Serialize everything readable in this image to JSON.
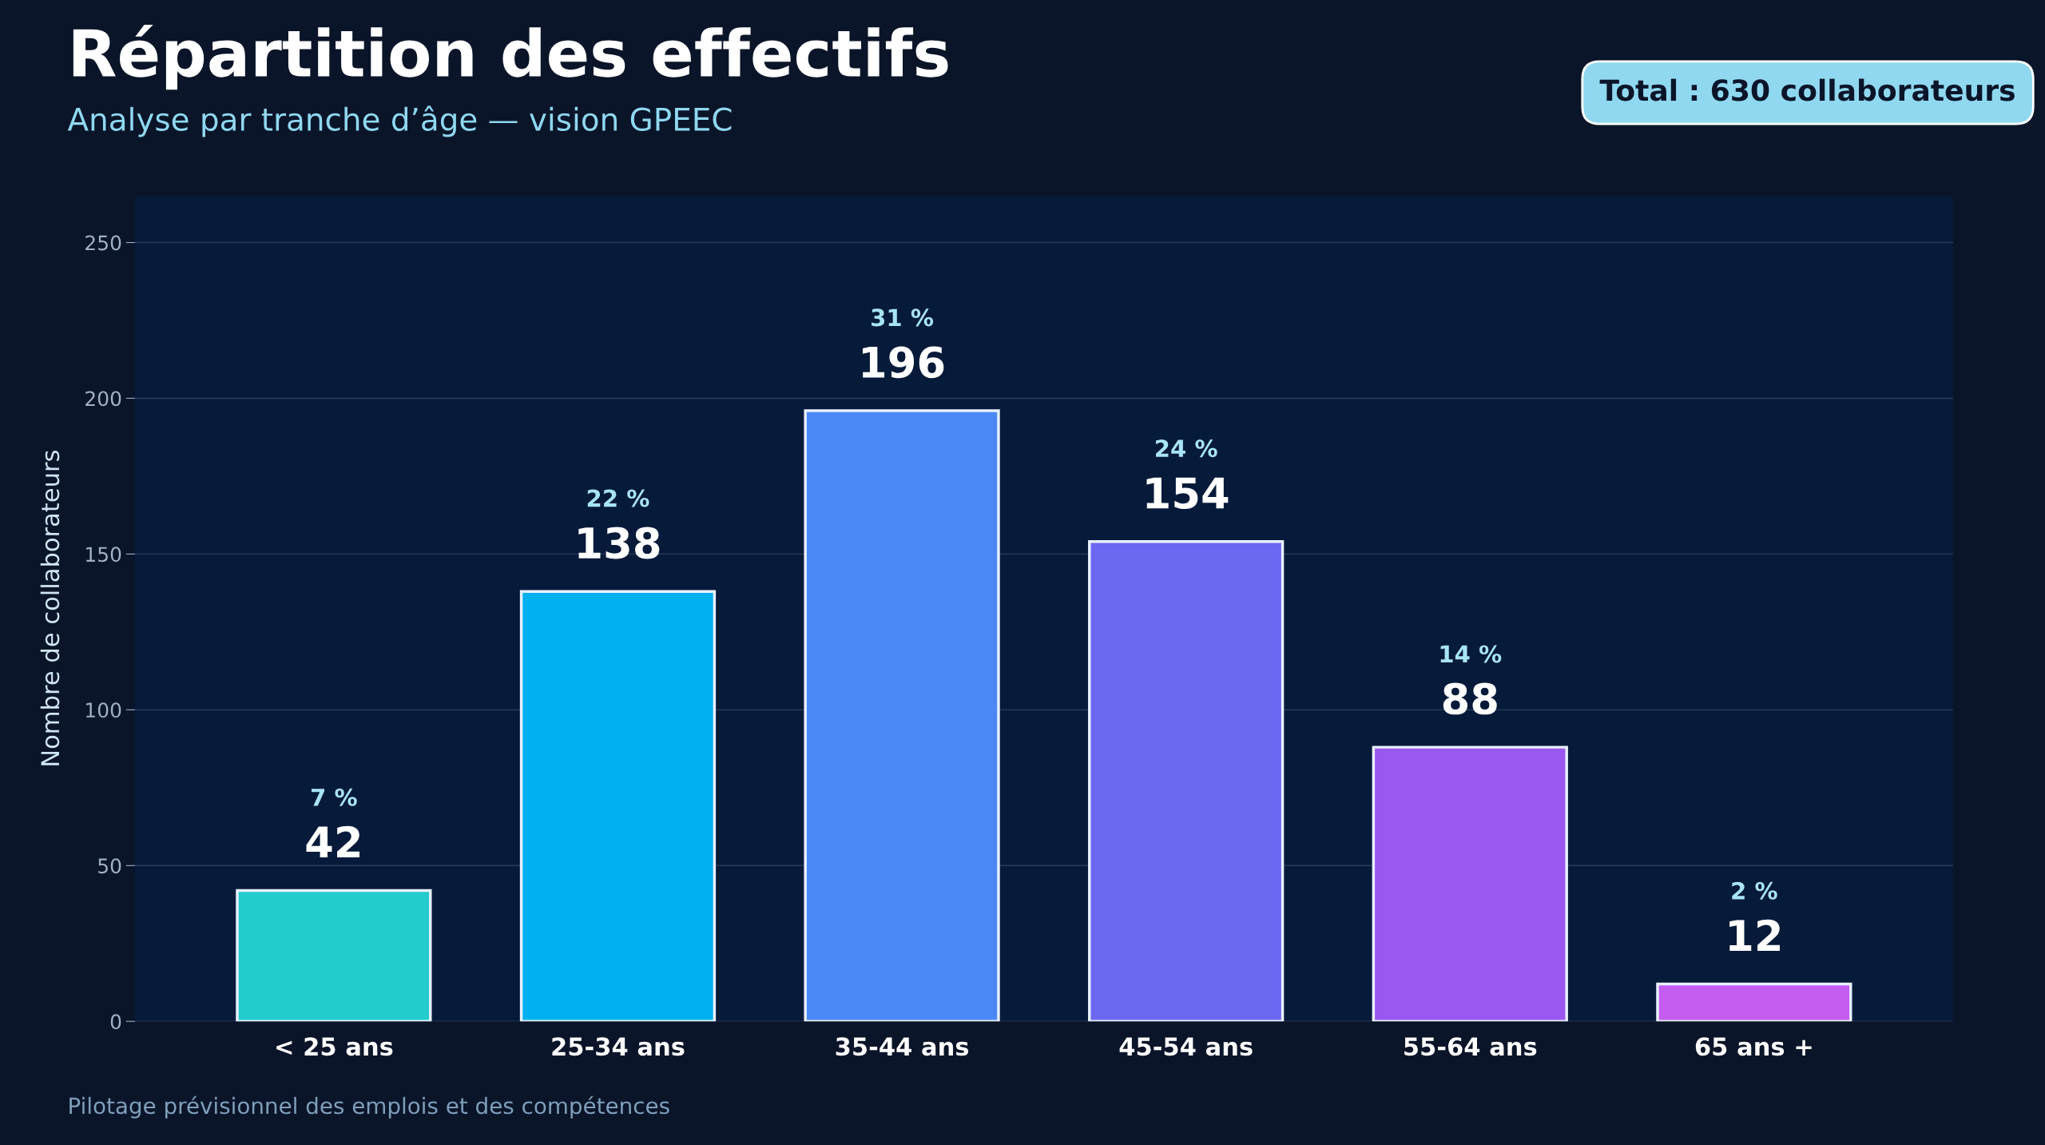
{
  "chart_data": {
    "type": "bar",
    "title": "Répartition des effectifs",
    "subtitle": "Analyse par tranche d’âge — vision GPEEC",
    "ylabel": "Nombre de collaborateurs",
    "categories": [
      "< 25 ans",
      "25-34 ans",
      "35-44 ans",
      "45-54 ans",
      "55-64 ans",
      "65 ans +"
    ],
    "values": [
      42,
      138,
      196,
      154,
      88,
      12
    ],
    "colors": [
      "#22cccc",
      "#00b0f0",
      "#4a88f5",
      "#6c68f2",
      "#9a58f0",
      "#c45cf0"
    ],
    "ylim": [
      0,
      265
    ],
    "yticks": [
      0,
      50,
      100,
      150,
      200,
      250
    ],
    "grid": "y",
    "data_labels": true,
    "annotations": [
      "7 %",
      "22 %",
      "31 %",
      "24 %",
      "14 %",
      "2 %",
      "Total : 630 collaborateurs",
      "Pilotage prévisionnel des emplois et des compétences"
    ]
  }
}
